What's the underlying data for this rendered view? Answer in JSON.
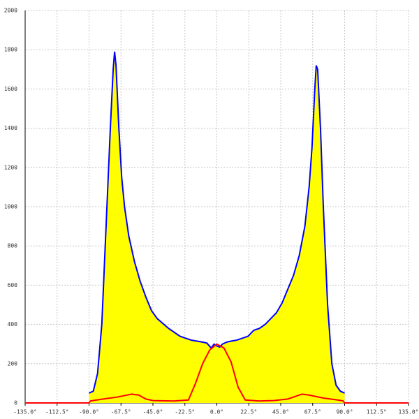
{
  "chart_data": {
    "type": "area",
    "xlim": [
      -135,
      135
    ],
    "ylim": [
      0,
      2000
    ],
    "xticks": [
      {
        "value": -135,
        "label": "-135.0°"
      },
      {
        "value": -112.5,
        "label": "-112.5°"
      },
      {
        "value": -90,
        "label": "-90.0°"
      },
      {
        "value": -67.5,
        "label": "-67.5°"
      },
      {
        "value": -45,
        "label": "-45.0°"
      },
      {
        "value": -22.5,
        "label": "-22.5°"
      },
      {
        "value": 0,
        "label": "0.0°"
      },
      {
        "value": 22.5,
        "label": "22.5°"
      },
      {
        "value": 45,
        "label": "45.0°"
      },
      {
        "value": 67.5,
        "label": "67.5°"
      },
      {
        "value": 90,
        "label": "90.0°"
      },
      {
        "value": 112.5,
        "label": "112.5°"
      },
      {
        "value": 135,
        "label": "135.0°"
      }
    ],
    "yticks": [
      0,
      200,
      400,
      600,
      800,
      1000,
      1200,
      1400,
      1600,
      1800,
      2000
    ],
    "grid": true,
    "series": [
      {
        "color": "#0000ff",
        "fill": "#ffff00",
        "x": [
          -90,
          -87,
          -84,
          -81,
          -78,
          -75,
          -73,
          -72,
          -71,
          -69,
          -67,
          -65,
          -62,
          -58,
          -54,
          -50,
          -46,
          -42,
          -38,
          -34,
          -30,
          -26,
          -22,
          -18,
          -14,
          -10,
          -7,
          -4,
          -2,
          0,
          2,
          4,
          7,
          10,
          14,
          18,
          22,
          26,
          30,
          34,
          38,
          42,
          46,
          50,
          54,
          58,
          62,
          65,
          67,
          69,
          70,
          71,
          73,
          75,
          78,
          81,
          84,
          87,
          90
        ],
        "values": [
          50,
          60,
          150,
          400,
          900,
          1400,
          1700,
          1790,
          1720,
          1400,
          1150,
          1000,
          850,
          720,
          620,
          540,
          470,
          430,
          405,
          380,
          360,
          340,
          330,
          320,
          315,
          310,
          305,
          280,
          300,
          290,
          285,
          300,
          310,
          315,
          320,
          330,
          340,
          370,
          380,
          400,
          430,
          460,
          510,
          580,
          650,
          750,
          900,
          1100,
          1300,
          1600,
          1720,
          1700,
          1400,
          1000,
          500,
          200,
          90,
          60,
          50
        ]
      },
      {
        "color": "#ff0000",
        "x": [
          -135,
          -90,
          -89,
          -80,
          -70,
          -60,
          -55,
          -50,
          -45,
          -30,
          -20,
          -15,
          -10,
          -5,
          0,
          5,
          10,
          15,
          20,
          30,
          40,
          50,
          60,
          65,
          75,
          85,
          89,
          90,
          135
        ],
        "values": [
          0,
          0,
          10,
          20,
          30,
          45,
          40,
          20,
          12,
          10,
          15,
          100,
          200,
          270,
          300,
          280,
          210,
          80,
          15,
          10,
          12,
          20,
          45,
          40,
          25,
          15,
          10,
          0,
          0
        ]
      }
    ]
  }
}
